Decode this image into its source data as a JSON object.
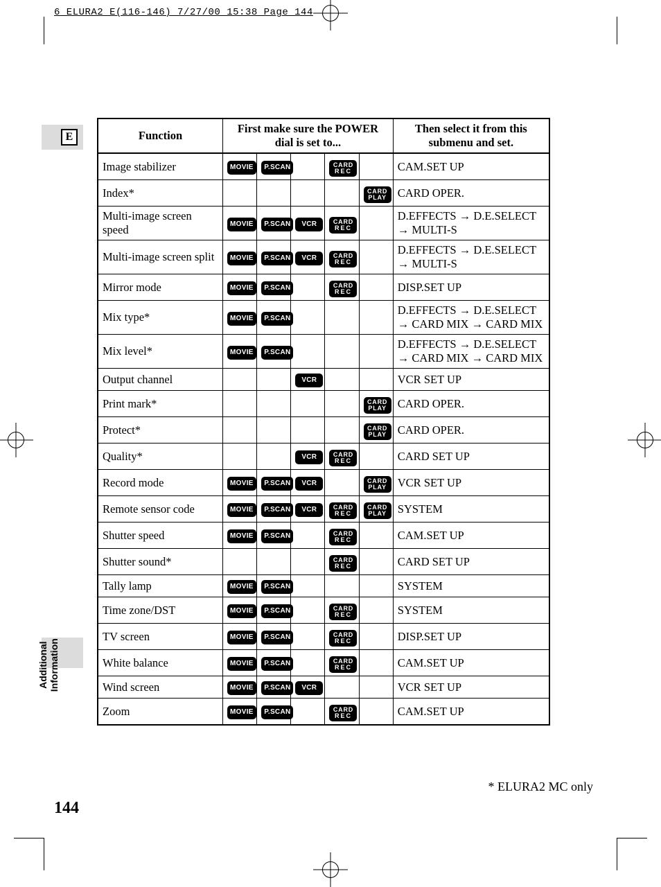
{
  "meta_header": "6_ELURA2_E(116-146)  7/27/00 15:38  Page 144",
  "language_tab": "E",
  "side_label_line1": "Additional",
  "side_label_line2": "Information",
  "page_number": "144",
  "footnote": "* ELURA2 MC only",
  "chips": {
    "movie": "MOVIE",
    "pscan": "P.SCAN",
    "vcr": "VCR",
    "cardrec_l1": "CARD",
    "cardrec_l2": "REC",
    "cardplay_l1": "CARD",
    "cardplay_l2": "PLAY"
  },
  "headers": {
    "function": "Function",
    "power_dial": "First make sure the POWER dial is set to...",
    "submenu": "Then select it from this submenu and set."
  },
  "rows": [
    {
      "fn": "Image stabilizer",
      "c": [
        "movie",
        "pscan",
        "",
        "cardrec",
        ""
      ],
      "sub": "CAM.SET UP"
    },
    {
      "fn": "Index*",
      "c": [
        "",
        "",
        "",
        "",
        "cardplay"
      ],
      "sub": "CARD OPER."
    },
    {
      "fn": "Multi-image screen speed",
      "c": [
        "movie",
        "pscan",
        "vcr",
        "cardrec",
        ""
      ],
      "sub": "D.EFFECTS → D.E.SELECT → MULTI-S"
    },
    {
      "fn": "Multi-image screen split",
      "c": [
        "movie",
        "pscan",
        "vcr",
        "cardrec",
        ""
      ],
      "sub": "D.EFFECTS → D.E.SELECT → MULTI-S"
    },
    {
      "fn": "Mirror mode",
      "c": [
        "movie",
        "pscan",
        "",
        "cardrec",
        ""
      ],
      "sub": "DISP.SET UP"
    },
    {
      "fn": "Mix type*",
      "c": [
        "movie",
        "pscan",
        "",
        "",
        ""
      ],
      "sub": "D.EFFECTS → D.E.SELECT → CARD MIX → CARD MIX"
    },
    {
      "fn": "Mix level*",
      "c": [
        "movie",
        "pscan",
        "",
        "",
        ""
      ],
      "sub": "D.EFFECTS → D.E.SELECT → CARD MIX → CARD MIX"
    },
    {
      "fn": "Output channel",
      "c": [
        "",
        "",
        "vcr",
        "",
        ""
      ],
      "sub": "VCR SET UP"
    },
    {
      "fn": "Print mark*",
      "c": [
        "",
        "",
        "",
        "",
        "cardplay"
      ],
      "sub": "CARD OPER."
    },
    {
      "fn": "Protect*",
      "c": [
        "",
        "",
        "",
        "",
        "cardplay"
      ],
      "sub": "CARD OPER."
    },
    {
      "fn": "Quality*",
      "c": [
        "",
        "",
        "vcr",
        "cardrec",
        ""
      ],
      "sub": "CARD SET UP"
    },
    {
      "fn": "Record mode",
      "c": [
        "movie",
        "pscan",
        "vcr",
        "",
        "cardplay"
      ],
      "sub": "VCR SET UP"
    },
    {
      "fn": "Remote sensor code",
      "c": [
        "movie",
        "pscan",
        "vcr",
        "cardrec",
        "cardplay"
      ],
      "sub": "SYSTEM"
    },
    {
      "fn": "Shutter speed",
      "c": [
        "movie",
        "pscan",
        "",
        "cardrec",
        ""
      ],
      "sub": "CAM.SET UP"
    },
    {
      "fn": "Shutter sound*",
      "c": [
        "",
        "",
        "",
        "cardrec",
        ""
      ],
      "sub": "CARD SET UP"
    },
    {
      "fn": "Tally lamp",
      "c": [
        "movie",
        "pscan",
        "",
        "",
        ""
      ],
      "sub": "SYSTEM"
    },
    {
      "fn": "Time zone/DST",
      "c": [
        "movie",
        "pscan",
        "",
        "cardrec",
        ""
      ],
      "sub": "SYSTEM"
    },
    {
      "fn": "TV screen",
      "c": [
        "movie",
        "pscan",
        "",
        "cardrec",
        ""
      ],
      "sub": "DISP.SET UP"
    },
    {
      "fn": "White balance",
      "c": [
        "movie",
        "pscan",
        "",
        "cardrec",
        ""
      ],
      "sub": "CAM.SET UP"
    },
    {
      "fn": "Wind screen",
      "c": [
        "movie",
        "pscan",
        "vcr",
        "",
        ""
      ],
      "sub": "VCR SET UP"
    },
    {
      "fn": "Zoom",
      "c": [
        "movie",
        "pscan",
        "",
        "cardrec",
        ""
      ],
      "sub": "CAM.SET UP"
    }
  ]
}
